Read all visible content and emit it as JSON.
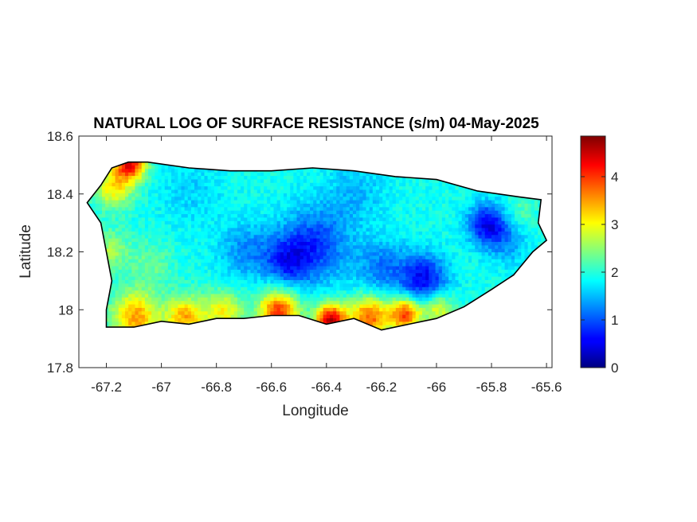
{
  "chart_data": {
    "type": "heatmap",
    "title": "NATURAL LOG OF SURFACE RESISTANCE (s/m) 04-May-2025",
    "xlabel": "Longitude",
    "ylabel": "Latitude",
    "xlim": [
      -67.3,
      -65.58
    ],
    "ylim": [
      17.8,
      18.6
    ],
    "xticks": [
      -67.2,
      -67,
      -66.8,
      -66.6,
      -66.4,
      -66.2,
      -66,
      -65.8,
      -65.6
    ],
    "xtick_labels": [
      "-67.2",
      "-67",
      "-66.8",
      "-66.6",
      "-66.4",
      "-66.2",
      "-66",
      "-65.8",
      "-65.6"
    ],
    "yticks": [
      17.8,
      18,
      18.2,
      18.4,
      18.6
    ],
    "ytick_labels": [
      "17.8",
      "18",
      "18.2",
      "18.4",
      "18.6"
    ],
    "colormap": "jet",
    "clim": [
      0,
      4.85
    ],
    "colorbar_ticks": [
      0,
      1,
      2,
      3,
      4
    ],
    "colorbar_tick_labels": [
      "0",
      "1",
      "2",
      "3",
      "4"
    ],
    "grid": false,
    "region_outline": [
      [
        -67.27,
        18.37
      ],
      [
        -67.22,
        18.43
      ],
      [
        -67.18,
        18.49
      ],
      [
        -67.12,
        18.51
      ],
      [
        -67.05,
        18.51
      ],
      [
        -66.9,
        18.49
      ],
      [
        -66.75,
        18.48
      ],
      [
        -66.6,
        18.48
      ],
      [
        -66.45,
        18.49
      ],
      [
        -66.3,
        18.48
      ],
      [
        -66.15,
        18.46
      ],
      [
        -66.0,
        18.45
      ],
      [
        -65.85,
        18.41
      ],
      [
        -65.7,
        18.39
      ],
      [
        -65.62,
        18.38
      ],
      [
        -65.63,
        18.3
      ],
      [
        -65.6,
        18.24
      ],
      [
        -65.65,
        18.2
      ],
      [
        -65.72,
        18.12
      ],
      [
        -65.8,
        18.07
      ],
      [
        -65.9,
        18.01
      ],
      [
        -66.0,
        17.97
      ],
      [
        -66.1,
        17.95
      ],
      [
        -66.2,
        17.93
      ],
      [
        -66.3,
        17.97
      ],
      [
        -66.4,
        17.95
      ],
      [
        -66.5,
        17.98
      ],
      [
        -66.6,
        17.98
      ],
      [
        -66.7,
        17.97
      ],
      [
        -66.8,
        17.97
      ],
      [
        -66.9,
        17.95
      ],
      [
        -67.0,
        17.96
      ],
      [
        -67.1,
        17.94
      ],
      [
        -67.2,
        17.94
      ],
      [
        -67.2,
        18.0
      ],
      [
        -67.18,
        18.1
      ],
      [
        -67.2,
        18.2
      ],
      [
        -67.22,
        18.3
      ],
      [
        -67.27,
        18.37
      ]
    ],
    "value_field": {
      "base": 1.9,
      "features": [
        {
          "lon": -67.12,
          "lat": 18.5,
          "value": 4.2,
          "spread": 0.04
        },
        {
          "lon": -67.18,
          "lat": 18.42,
          "value": 3.1,
          "spread": 0.05
        },
        {
          "lon": -67.2,
          "lat": 18.2,
          "value": 2.6,
          "spread": 0.05
        },
        {
          "lon": -67.1,
          "lat": 17.97,
          "value": 3.5,
          "spread": 0.06
        },
        {
          "lon": -66.92,
          "lat": 17.97,
          "value": 3.4,
          "spread": 0.05
        },
        {
          "lon": -66.78,
          "lat": 17.99,
          "value": 3.0,
          "spread": 0.05
        },
        {
          "lon": -66.58,
          "lat": 17.99,
          "value": 4.0,
          "spread": 0.05
        },
        {
          "lon": -66.39,
          "lat": 17.96,
          "value": 4.5,
          "spread": 0.04
        },
        {
          "lon": -66.25,
          "lat": 17.97,
          "value": 3.8,
          "spread": 0.05
        },
        {
          "lon": -66.12,
          "lat": 17.98,
          "value": 4.0,
          "spread": 0.04
        },
        {
          "lon": -66.0,
          "lat": 18.0,
          "value": 3.0,
          "spread": 0.04
        },
        {
          "lon": -66.7,
          "lat": 18.2,
          "value": 1.3,
          "spread": 0.07
        },
        {
          "lon": -66.45,
          "lat": 18.22,
          "value": 0.9,
          "spread": 0.09
        },
        {
          "lon": -66.55,
          "lat": 18.16,
          "value": 1.0,
          "spread": 0.06
        },
        {
          "lon": -66.2,
          "lat": 18.14,
          "value": 1.2,
          "spread": 0.07
        },
        {
          "lon": -66.05,
          "lat": 18.1,
          "value": 0.6,
          "spread": 0.06
        },
        {
          "lon": -65.82,
          "lat": 18.29,
          "value": 0.5,
          "spread": 0.05
        },
        {
          "lon": -65.75,
          "lat": 18.22,
          "value": 1.4,
          "spread": 0.05
        },
        {
          "lon": -65.7,
          "lat": 18.34,
          "value": 2.2,
          "spread": 0.04
        },
        {
          "lon": -66.9,
          "lat": 18.4,
          "value": 1.6,
          "spread": 0.08
        },
        {
          "lon": -66.3,
          "lat": 18.4,
          "value": 1.5,
          "spread": 0.08
        },
        {
          "lon": -67.05,
          "lat": 18.15,
          "value": 2.3,
          "spread": 0.06
        }
      ]
    }
  }
}
